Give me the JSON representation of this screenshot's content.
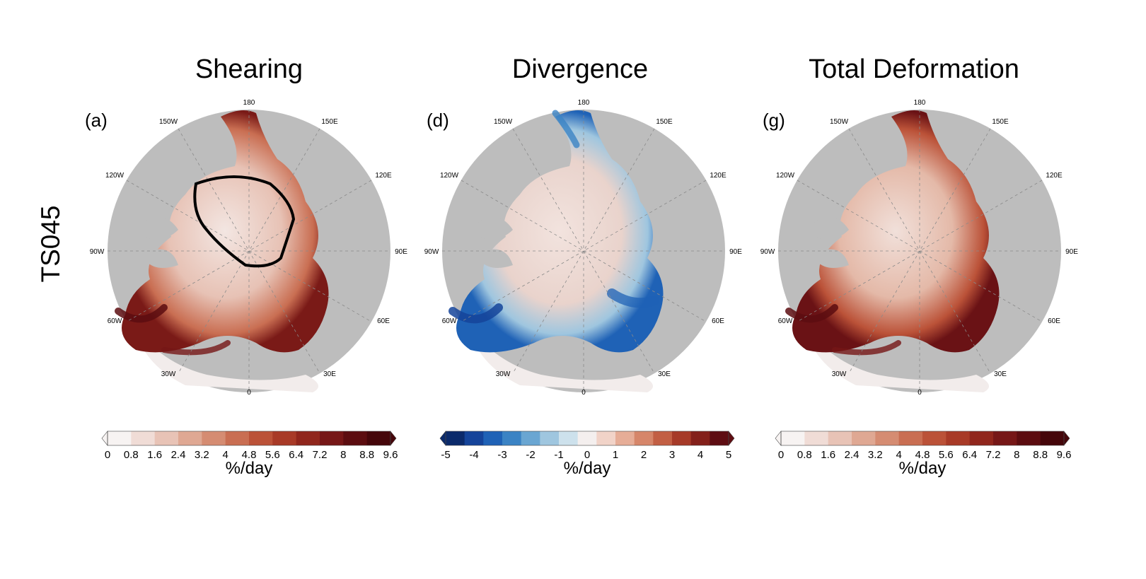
{
  "row_label": "TS045",
  "colors": {
    "land": "#bdbdbd",
    "ice_low": "#f2eceb",
    "grid": "#8a8a8a",
    "contour": "#000000"
  },
  "longitude_labels": {
    "deg180": "180",
    "deg150e": "150E",
    "deg120e": "120E",
    "deg90e": "90E",
    "deg60e": "60E",
    "deg30e": "30E",
    "deg0": "0",
    "deg30w": "30W",
    "deg60w": "60W",
    "deg90w": "90W",
    "deg120w": "120W",
    "deg150w": "150W"
  },
  "panels": [
    {
      "id": "shearing",
      "title": "Shearing",
      "letter": "(a)",
      "colorbar": {
        "type": "sequential",
        "ticks": [
          "0",
          "0.8",
          "1.6",
          "2.4",
          "3.2",
          "4",
          "4.8",
          "5.6",
          "6.4",
          "7.2",
          "8",
          "8.8",
          "9.6"
        ],
        "unit": "%/day",
        "colors": [
          "#f7f3f2",
          "#f0dcd6",
          "#e8c3b6",
          "#dfa893",
          "#d58c72",
          "#c96e52",
          "#bb5238",
          "#a83a27",
          "#90261c",
          "#761717",
          "#5c0d10",
          "#45060a"
        ]
      },
      "has_contour": true
    },
    {
      "id": "divergence",
      "title": "Divergence",
      "letter": "(d)",
      "colorbar": {
        "type": "diverging",
        "ticks": [
          "-5",
          "-4",
          "-3",
          "-2",
          "-1",
          "0",
          "1",
          "2",
          "3",
          "4",
          "5"
        ],
        "unit": "%/day",
        "colors": [
          "#0b2a6b",
          "#15449a",
          "#1f62b6",
          "#3b83c4",
          "#6aa6d2",
          "#9fc6df",
          "#cde1ec",
          "#f4efee",
          "#f1d3c8",
          "#e6ad97",
          "#d6866a",
          "#c25f44",
          "#a63a28",
          "#83201a",
          "#5e0d12"
        ]
      },
      "has_contour": false
    },
    {
      "id": "total-deformation",
      "title": "Total Deformation",
      "letter": "(g)",
      "colorbar": {
        "type": "sequential",
        "ticks": [
          "0",
          "0.8",
          "1.6",
          "2.4",
          "3.2",
          "4",
          "4.8",
          "5.6",
          "6.4",
          "7.2",
          "8",
          "8.8",
          "9.6"
        ],
        "unit": "%/day",
        "colors": [
          "#f7f3f2",
          "#f0dcd6",
          "#e8c3b6",
          "#dfa893",
          "#d58c72",
          "#c96e52",
          "#bb5238",
          "#a83a27",
          "#90261c",
          "#761717",
          "#5c0d10",
          "#45060a"
        ]
      },
      "has_contour": false
    }
  ]
}
